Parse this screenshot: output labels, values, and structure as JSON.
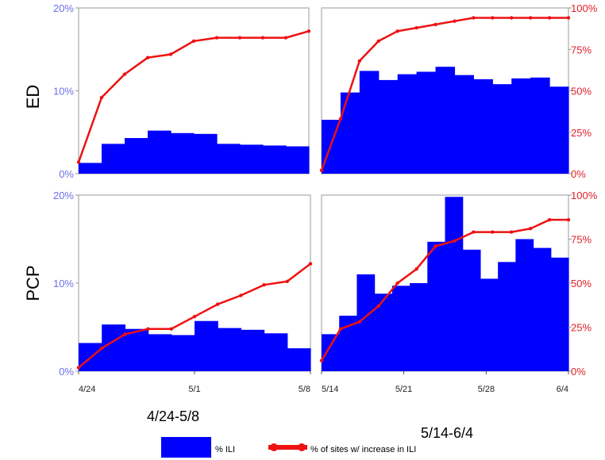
{
  "colors": {
    "bars": "#0000ff",
    "line": "#ee1111",
    "left_axis": "#6f6fe6",
    "right_axis": "#e0202a",
    "frame": "#9a9a9a"
  },
  "row_labels": [
    "ED",
    "PCP"
  ],
  "column_labels": [
    "4/24-5/8",
    "5/14-6/4"
  ],
  "legend": {
    "bars_label": "% ILI",
    "line_label": "% of sites w/ increase in ILI"
  },
  "chart_data": [
    {
      "type": "bar+line",
      "row": "ED",
      "column": "4/24-5/8",
      "y_left": {
        "ticks": [
          "20%",
          "10%",
          "0%"
        ],
        "ylim": [
          0,
          20
        ]
      },
      "y_right": {
        "ticks": [],
        "ylim": [
          0,
          100
        ]
      },
      "x_ticks": [],
      "bars_pct_ili": [
        1.3,
        3.6,
        4.3,
        5.2,
        4.9,
        4.8,
        3.6,
        3.5,
        3.4,
        3.3
      ],
      "line_pct_sites": [
        7,
        46,
        60,
        70,
        72,
        80,
        82,
        82,
        82,
        82,
        86
      ]
    },
    {
      "type": "bar+line",
      "row": "ED",
      "column": "5/14-6/4",
      "y_left": {
        "ticks": [],
        "ylim": [
          0,
          20
        ]
      },
      "y_right": {
        "ticks": [
          "100%",
          "75%",
          "50%",
          "25%",
          "0%"
        ],
        "ylim": [
          0,
          100
        ]
      },
      "x_ticks": [],
      "bars_pct_ili": [
        6.5,
        9.8,
        12.4,
        11.3,
        12.0,
        12.3,
        12.9,
        11.9,
        11.4,
        10.8,
        11.5,
        11.6,
        10.5
      ],
      "line_pct_sites": [
        2,
        33,
        68,
        80,
        86,
        88,
        90,
        92,
        94,
        94,
        94,
        94,
        94,
        94
      ]
    },
    {
      "type": "bar+line",
      "row": "PCP",
      "column": "4/24-5/8",
      "y_left": {
        "ticks": [
          "20%",
          "10%",
          "0%"
        ],
        "ylim": [
          0,
          20
        ]
      },
      "y_right": {
        "ticks": [],
        "ylim": [
          0,
          100
        ]
      },
      "x_ticks": [
        {
          "label": "4/24",
          "pos": 0
        },
        {
          "label": "5/1",
          "pos": 0.5
        },
        {
          "label": "5/8",
          "pos": 1
        }
      ],
      "bars_pct_ili": [
        3.2,
        5.3,
        4.8,
        4.2,
        4.1,
        5.7,
        4.9,
        4.7,
        4.3,
        2.6
      ],
      "line_pct_sites": [
        2,
        13,
        21,
        24,
        24,
        31,
        38,
        43,
        49,
        51,
        61
      ]
    },
    {
      "type": "bar+line",
      "row": "PCP",
      "column": "5/14-6/4",
      "y_left": {
        "ticks": [],
        "ylim": [
          0,
          20
        ]
      },
      "y_right": {
        "ticks": [
          "100%",
          "75%",
          "50%",
          "25%",
          "0%"
        ],
        "ylim": [
          0,
          100
        ]
      },
      "x_ticks": [
        {
          "label": "5/14",
          "pos": 0
        },
        {
          "label": "5/21",
          "pos": 0.333
        },
        {
          "label": "5/28",
          "pos": 0.667
        },
        {
          "label": "6/4",
          "pos": 1
        }
      ],
      "bars_pct_ili": [
        4.2,
        6.3,
        11.0,
        8.8,
        9.7,
        10.0,
        14.7,
        19.8,
        13.8,
        10.5,
        12.4,
        15.0,
        14.0,
        12.9
      ],
      "line_pct_sites": [
        6,
        24,
        28,
        37,
        50,
        58,
        71,
        74,
        79,
        79,
        79,
        81,
        86,
        86
      ]
    }
  ]
}
